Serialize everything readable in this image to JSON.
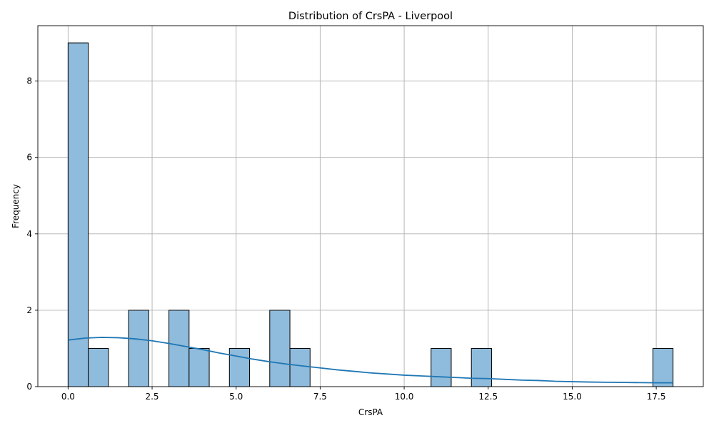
{
  "chart_data": {
    "type": "bar",
    "title": "Distribution of CrsPA - Liverpool",
    "xlabel": "CrsPA",
    "ylabel": "Frequency",
    "xlim": [
      -0.9,
      18.9
    ],
    "ylim": [
      0,
      9.45
    ],
    "xticks": [
      0.0,
      2.5,
      5.0,
      7.5,
      10.0,
      12.5,
      15.0,
      17.5
    ],
    "xtick_labels": [
      "0.0",
      "2.5",
      "5.0",
      "7.5",
      "10.0",
      "12.5",
      "15.0",
      "17.5"
    ],
    "yticks": [
      0,
      2,
      4,
      6,
      8
    ],
    "ytick_labels": [
      "0",
      "2",
      "4",
      "6",
      "8"
    ],
    "grid": true,
    "bin_width": 0.6,
    "bins": [
      {
        "x0": 0.0,
        "x1": 0.6,
        "count": 9
      },
      {
        "x0": 0.6,
        "x1": 1.2,
        "count": 1
      },
      {
        "x0": 1.8,
        "x1": 2.4,
        "count": 2
      },
      {
        "x0": 3.0,
        "x1": 3.6,
        "count": 2
      },
      {
        "x0": 3.6,
        "x1": 4.2,
        "count": 1
      },
      {
        "x0": 4.8,
        "x1": 5.4,
        "count": 1
      },
      {
        "x0": 6.0,
        "x1": 6.6,
        "count": 2
      },
      {
        "x0": 6.6,
        "x1": 7.2,
        "count": 1
      },
      {
        "x0": 10.8,
        "x1": 11.4,
        "count": 1
      },
      {
        "x0": 12.0,
        "x1": 12.6,
        "count": 1
      },
      {
        "x0": 17.4,
        "x1": 18.0,
        "count": 1
      }
    ],
    "kde": {
      "x": [
        0,
        0.5,
        1,
        1.5,
        2,
        2.5,
        3,
        3.5,
        4,
        4.5,
        5,
        5.5,
        6,
        6.5,
        7,
        7.5,
        8,
        8.5,
        9,
        9.5,
        10,
        10.5,
        11,
        11.5,
        12,
        12.5,
        13,
        13.5,
        14,
        14.5,
        15,
        15.5,
        16,
        16.5,
        17,
        17.5,
        18
      ],
      "y": [
        1.22,
        1.27,
        1.29,
        1.28,
        1.25,
        1.2,
        1.13,
        1.05,
        0.97,
        0.88,
        0.8,
        0.72,
        0.65,
        0.59,
        0.54,
        0.49,
        0.44,
        0.4,
        0.36,
        0.33,
        0.3,
        0.28,
        0.26,
        0.24,
        0.22,
        0.21,
        0.19,
        0.17,
        0.16,
        0.14,
        0.13,
        0.12,
        0.115,
        0.11,
        0.105,
        0.1,
        0.1
      ]
    },
    "colors": {
      "bar_fill": "#8fbbdc",
      "bar_edge": "#000000",
      "kde_line": "#1f77b4",
      "grid": "#b0b0b0"
    }
  }
}
